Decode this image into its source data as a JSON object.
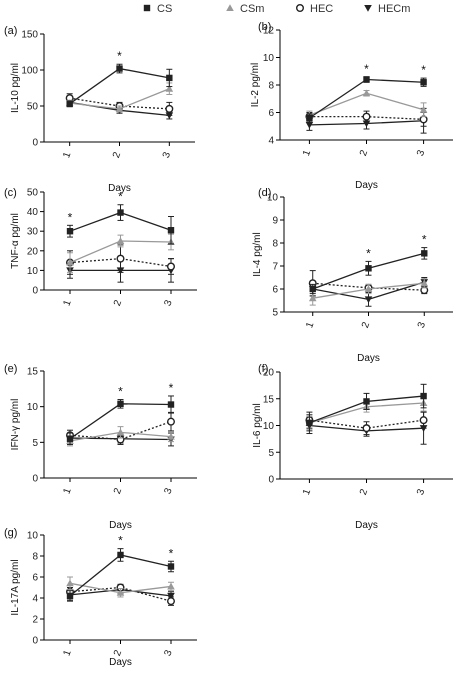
{
  "legend": {
    "entries": [
      {
        "label": "CS",
        "marker": "square-filled",
        "color": "#222222",
        "line": "solid"
      },
      {
        "label": "CSm",
        "marker": "triangle-up-filled",
        "color": "#999999",
        "line": "solid"
      },
      {
        "label": "HEC",
        "marker": "circle-open",
        "color": "#222222",
        "line": "dotted"
      },
      {
        "label": "HECm",
        "marker": "triangle-down-filled",
        "color": "#222222",
        "line": "solid"
      }
    ]
  },
  "chart_data": [
    {
      "panel": "(a)",
      "type": "line",
      "ylabel": "IL-10 pg/ml",
      "xlabel": "Days",
      "categories": [
        "1",
        "2",
        "3"
      ],
      "ylim": [
        0,
        150
      ],
      "yticks": [
        0,
        50,
        100,
        150
      ],
      "yticklabels": [
        "0",
        "50",
        "100",
        "150"
      ],
      "series": [
        {
          "name": "CS",
          "values": [
            53,
            102,
            89
          ],
          "errors": [
            4,
            6,
            12
          ]
        },
        {
          "name": "CSm",
          "values": [
            54,
            46,
            74
          ],
          "errors": [
            4,
            4,
            8
          ]
        },
        {
          "name": "HEC",
          "values": [
            61,
            50,
            46
          ],
          "errors": [
            6,
            5,
            9
          ]
        },
        {
          "name": "HECm",
          "values": [
            55,
            44,
            37
          ],
          "errors": [
            4,
            4,
            5
          ]
        }
      ],
      "significance": [
        {
          "category": "2",
          "label": "*"
        }
      ]
    },
    {
      "panel": "(b)",
      "type": "line",
      "ylabel": "IL-2 pg/ml",
      "xlabel": "Days",
      "categories": [
        "1",
        "2",
        "3"
      ],
      "ylim": [
        4,
        12
      ],
      "yticks": [
        4,
        6,
        8,
        10,
        12
      ],
      "yticklabels": [
        "4",
        "6",
        "8",
        "10",
        "12"
      ],
      "series": [
        {
          "name": "CS",
          "values": [
            5.6,
            8.4,
            8.2
          ],
          "errors": [
            0.3,
            0.2,
            0.3
          ]
        },
        {
          "name": "CSm",
          "values": [
            5.8,
            7.4,
            6.2
          ],
          "errors": [
            0.3,
            0.2,
            0.5
          ]
        },
        {
          "name": "HEC",
          "values": [
            5.7,
            5.7,
            5.5
          ],
          "errors": [
            0.3,
            0.4,
            0.5
          ]
        },
        {
          "name": "HECm",
          "values": [
            5.1,
            5.2,
            5.4
          ],
          "errors": [
            0.4,
            0.4,
            0.9
          ]
        }
      ],
      "significance": [
        {
          "category": "2",
          "label": "*"
        },
        {
          "category": "3",
          "label": "*"
        }
      ]
    },
    {
      "panel": "(c)",
      "type": "line",
      "ylabel": "TNF-α pg/ml",
      "xlabel": "",
      "categories": [
        "1",
        "2",
        "3"
      ],
      "ylim": [
        0,
        50
      ],
      "yticks": [
        0,
        10,
        20,
        30,
        40,
        50
      ],
      "yticklabels": [
        "0",
        "10",
        "20",
        "30",
        "40",
        "50"
      ],
      "series": [
        {
          "name": "CS",
          "values": [
            30,
            39.5,
            30.5
          ],
          "errors": [
            3,
            4,
            7
          ]
        },
        {
          "name": "CSm",
          "values": [
            14,
            25,
            24.5
          ],
          "errors": [
            5,
            3,
            4
          ]
        },
        {
          "name": "HEC",
          "values": [
            14,
            16,
            12
          ],
          "errors": [
            6,
            7,
            4
          ]
        },
        {
          "name": "HECm",
          "values": [
            10,
            10,
            10
          ],
          "errors": [
            4,
            6,
            6
          ]
        }
      ],
      "significance": [
        {
          "category": "1",
          "label": "*"
        },
        {
          "category": "2",
          "label": "*"
        }
      ]
    },
    {
      "panel": "(d)",
      "type": "line",
      "ylabel": "IL-4 pg/ml",
      "xlabel": "Days",
      "categories": [
        "1",
        "2",
        "3"
      ],
      "ylim": [
        5,
        10
      ],
      "yticks": [
        5,
        6,
        7,
        8,
        9,
        10
      ],
      "yticklabels": [
        "5",
        "6",
        "7",
        "8",
        "9",
        "10"
      ],
      "series": [
        {
          "name": "CS",
          "values": [
            6.0,
            6.9,
            7.55
          ],
          "errors": [
            0.2,
            0.3,
            0.25
          ]
        },
        {
          "name": "CSm",
          "values": [
            5.6,
            6.0,
            6.25
          ],
          "errors": [
            0.3,
            0.2,
            0.2
          ]
        },
        {
          "name": "HEC",
          "values": [
            6.25,
            6.05,
            5.95
          ],
          "errors": [
            0.55,
            0.15,
            0.15
          ]
        },
        {
          "name": "HECm",
          "values": [
            6.0,
            5.55,
            6.3
          ],
          "errors": [
            0.3,
            0.3,
            0.2
          ]
        }
      ],
      "significance": [
        {
          "category": "2",
          "label": "*"
        },
        {
          "category": "3",
          "label": "*"
        }
      ]
    },
    {
      "panel": "(e)",
      "type": "line",
      "ylabel": "IFN-γ pg/ml",
      "xlabel": "Days",
      "categories": [
        "1",
        "2",
        "3"
      ],
      "ylim": [
        0,
        15
      ],
      "yticks": [
        0,
        5,
        10,
        15
      ],
      "yticklabels": [
        "0",
        "5",
        "10",
        "15"
      ],
      "series": [
        {
          "name": "CS",
          "values": [
            5.5,
            10.4,
            10.3
          ],
          "errors": [
            0.8,
            0.6,
            1.2
          ]
        },
        {
          "name": "CSm",
          "values": [
            5.2,
            6.4,
            5.8
          ],
          "errors": [
            0.7,
            0.8,
            0.7
          ]
        },
        {
          "name": "HEC",
          "values": [
            6.0,
            5.4,
            7.9
          ],
          "errors": [
            0.7,
            0.5,
            1.3
          ]
        },
        {
          "name": "HECm",
          "values": [
            5.6,
            5.5,
            5.4
          ],
          "errors": [
            0.6,
            0.8,
            0.9
          ]
        }
      ],
      "significance": [
        {
          "category": "2",
          "label": "*"
        },
        {
          "category": "3",
          "label": "*"
        }
      ]
    },
    {
      "panel": "(f)",
      "type": "line",
      "ylabel": "IL-6 pg/ml",
      "xlabel": "Days",
      "categories": [
        "1",
        "2",
        "3"
      ],
      "ylim": [
        0,
        20
      ],
      "yticks": [
        0,
        5,
        10,
        15,
        20
      ],
      "yticklabels": [
        "0",
        "5",
        "10",
        "15",
        "20"
      ],
      "series": [
        {
          "name": "CS",
          "values": [
            10.5,
            14.5,
            15.5
          ],
          "errors": [
            1.5,
            1.5,
            2.2
          ]
        },
        {
          "name": "CSm",
          "values": [
            10.5,
            13.5,
            14.2
          ],
          "errors": [
            1.2,
            1.0,
            1.5
          ]
        },
        {
          "name": "HEC",
          "values": [
            11,
            9.5,
            11
          ],
          "errors": [
            1.5,
            1.2,
            1.5
          ]
        },
        {
          "name": "HECm",
          "values": [
            10,
            9,
            9.5
          ],
          "errors": [
            1.5,
            1.0,
            3
          ]
        }
      ],
      "significance": []
    },
    {
      "panel": "(g)",
      "type": "line",
      "ylabel": "IL-17A pg/ml",
      "xlabel": "Days",
      "categories": [
        "1",
        "2",
        "3"
      ],
      "ylim": [
        0,
        10
      ],
      "yticks": [
        0,
        2,
        4,
        6,
        8,
        10
      ],
      "yticklabels": [
        "0",
        "2",
        "4",
        "6",
        "8",
        "10"
      ],
      "series": [
        {
          "name": "CS",
          "values": [
            4.2,
            8.1,
            7.0
          ],
          "errors": [
            0.5,
            0.6,
            0.5
          ]
        },
        {
          "name": "CSm",
          "values": [
            5.4,
            4.5,
            5.1
          ],
          "errors": [
            0.6,
            0.4,
            0.4
          ]
        },
        {
          "name": "HEC",
          "values": [
            4.6,
            5.0,
            3.7
          ],
          "errors": [
            0.4,
            0.3,
            0.4
          ]
        },
        {
          "name": "HECm",
          "values": [
            4.3,
            4.8,
            4.2
          ],
          "errors": [
            0.5,
            0.4,
            0.4
          ]
        }
      ],
      "significance": [
        {
          "category": "2",
          "label": "*"
        },
        {
          "category": "3",
          "label": "*"
        }
      ]
    }
  ]
}
